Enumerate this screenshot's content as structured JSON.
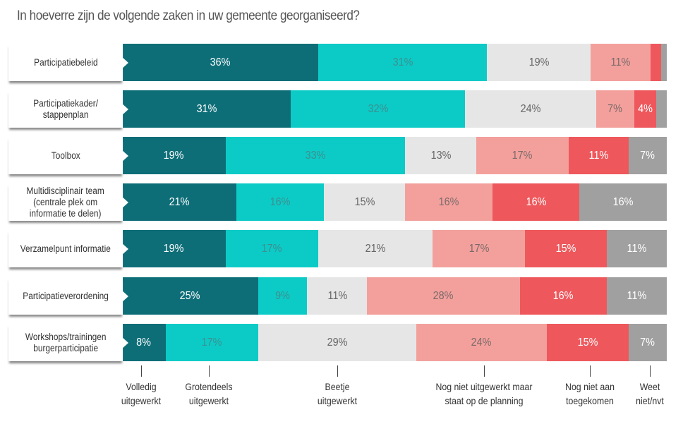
{
  "chart_data": {
    "type": "bar",
    "orientation": "horizontal",
    "stacked": true,
    "title": "In hoeverre zijn de volgende zaken in uw gemeente georganiseerd?",
    "categories": [
      "Participatiebeleid",
      "Participatiekader/ stappenplan",
      "Toolbox",
      "Multidisciplinair team (centrale plek om informatie te delen)",
      "Verzamelpunt informatie",
      "Participatieverordening",
      "Workshops/trainingen burgerparticipatie"
    ],
    "series": [
      {
        "name": "Volledig uitgewerkt",
        "color": "#0e6e78",
        "text_color": "#ffffff",
        "values": [
          36,
          31,
          19,
          21,
          19,
          25,
          8
        ],
        "labels": [
          "36%",
          "31%",
          "19%",
          "21%",
          "19%",
          "25%",
          "8%"
        ]
      },
      {
        "name": "Grotendeels uitgewerkt",
        "color": "#0ccbc6",
        "text_color": "#3d8f8f",
        "values": [
          31,
          32,
          33,
          16,
          17,
          9,
          17
        ],
        "labels": [
          "31%",
          "32%",
          "33%",
          "16%",
          "17%",
          "9%",
          "17%"
        ]
      },
      {
        "name": "Beetje uitgewerkt",
        "color": "#e6e6e6",
        "text_color": "#666666",
        "values": [
          19,
          24,
          13,
          15,
          21,
          11,
          29
        ],
        "labels": [
          "19%",
          "24%",
          "13%",
          "15%",
          "21%",
          "11%",
          "29%"
        ]
      },
      {
        "name": "Nog niet uitgewerkt maar staat op de planning",
        "color": "#f3a09c",
        "text_color": "#7a6a6a",
        "values": [
          11,
          7,
          17,
          16,
          17,
          28,
          24
        ],
        "labels": [
          "11%",
          "7%",
          "17%",
          "16%",
          "17%",
          "28%",
          "24%"
        ]
      },
      {
        "name": "Nog niet aan toegekomen",
        "color": "#ee585c",
        "text_color": "#ffffff",
        "values": [
          2,
          4,
          11,
          16,
          15,
          16,
          15
        ],
        "labels": [
          "",
          "4%",
          "11%",
          "16%",
          "15%",
          "16%",
          "15%"
        ]
      },
      {
        "name": "Weet niet/nvt",
        "color": "#a0a0a0",
        "text_color": "#ffffff",
        "values": [
          1,
          2,
          7,
          16,
          11,
          11,
          7
        ],
        "labels": [
          "",
          "",
          "7%",
          "16%",
          "11%",
          "11%",
          "7%"
        ]
      }
    ],
    "legend": {
      "placement": "bottom",
      "entries": [
        "Volledig uitgewerkt",
        "Grotendeels uitgewerkt",
        "Beetje uitgewerkt",
        "Nog niet uitgewerkt maar staat op de planning",
        "Nog niet aan toegekomen",
        "Weet niet/nvt"
      ]
    }
  }
}
